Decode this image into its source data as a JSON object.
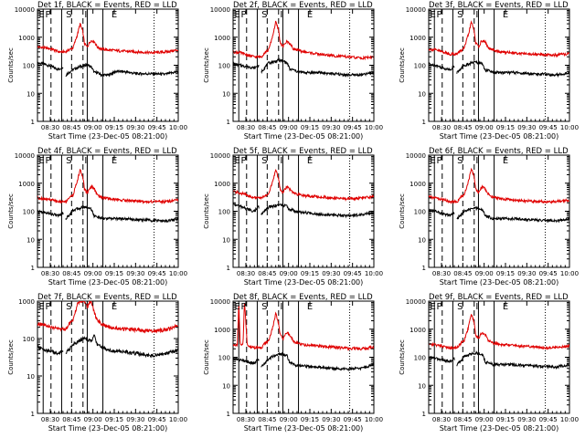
{
  "figure": {
    "x_title": "Start Time (23-Dec-05 08:21:00)",
    "y_title": "Counts/sec",
    "x_ticks": [
      "08:30",
      "08:45",
      "09:00",
      "09:15",
      "09:30",
      "09:45",
      "10:00"
    ],
    "y_ticks": [
      "1",
      "10",
      "100",
      "1000",
      "10000"
    ],
    "interval_labels": [
      "E",
      "P",
      "S",
      "I",
      "E"
    ],
    "colors": {
      "events": "#000000",
      "lld": "#e00000"
    }
  },
  "chart_data": [
    {
      "type": "line",
      "title": "Det 1f, BLACK = Events, RED = LLD",
      "xlabel": "Start Time (23-Dec-05 08:21:00)",
      "ylabel": "Counts/sec",
      "x_unit": "minutes after 08:21",
      "xlim": [
        0,
        99
      ],
      "ylim": [
        1,
        10000
      ],
      "y_scale": "log",
      "series": [
        {
          "name": "Events",
          "color": "black",
          "x": [
            0,
            5,
            10,
            15,
            18,
            19,
            20,
            22,
            25,
            30,
            32,
            35,
            38,
            40,
            42,
            45,
            50,
            55,
            60,
            70,
            80,
            90,
            99
          ],
          "y": [
            120,
            110,
            90,
            70,
            90,
            35,
            45,
            55,
            70,
            90,
            95,
            105,
            85,
            55,
            55,
            45,
            45,
            60,
            60,
            50,
            50,
            48,
            60
          ]
        },
        {
          "name": "LLD",
          "color": "red",
          "x": [
            0,
            5,
            10,
            15,
            20,
            22,
            25,
            28,
            30,
            32,
            33,
            35,
            37,
            38,
            40,
            42,
            45,
            50,
            60,
            70,
            80,
            90,
            99
          ],
          "y": [
            450,
            420,
            380,
            300,
            300,
            350,
            420,
            1200,
            3000,
            1500,
            600,
            450,
            700,
            750,
            700,
            450,
            380,
            350,
            320,
            300,
            280,
            300,
            350
          ]
        }
      ]
    },
    {
      "type": "line",
      "title": "Det 2f, BLACK = Events, RED = LLD",
      "xlabel": "Start Time (23-Dec-05 08:21:00)",
      "ylabel": "Counts/sec",
      "x_unit": "minutes after 08:21",
      "xlim": [
        0,
        99
      ],
      "ylim": [
        1,
        10000
      ],
      "y_scale": "log",
      "series": [
        {
          "name": "Events",
          "color": "black",
          "x": [
            0,
            5,
            10,
            15,
            18,
            19,
            20,
            22,
            25,
            30,
            32,
            35,
            38,
            40,
            42,
            45,
            50,
            55,
            60,
            70,
            80,
            90,
            99
          ],
          "y": [
            110,
            100,
            90,
            80,
            100,
            60,
            60,
            80,
            120,
            140,
            150,
            145,
            120,
            70,
            70,
            60,
            55,
            55,
            55,
            50,
            45,
            45,
            55
          ]
        },
        {
          "name": "LLD",
          "color": "red",
          "x": [
            0,
            5,
            10,
            15,
            20,
            22,
            25,
            28,
            30,
            32,
            33,
            35,
            37,
            38,
            40,
            42,
            45,
            50,
            60,
            70,
            80,
            90,
            99
          ],
          "y": [
            300,
            280,
            230,
            200,
            200,
            280,
            350,
            1200,
            3500,
            1800,
            700,
            450,
            650,
            700,
            600,
            400,
            350,
            300,
            250,
            220,
            200,
            180,
            200
          ]
        }
      ]
    },
    {
      "type": "line",
      "title": "Det 3f, BLACK = Events, RED = LLD",
      "xlabel": "Start Time (23-Dec-05 08:21:00)",
      "ylabel": "Counts/sec",
      "x_unit": "minutes after 08:21",
      "xlim": [
        0,
        99
      ],
      "ylim": [
        1,
        10000
      ],
      "y_scale": "log",
      "series": [
        {
          "name": "Events",
          "color": "black",
          "x": [
            0,
            5,
            10,
            15,
            18,
            19,
            20,
            22,
            25,
            30,
            32,
            35,
            38,
            40,
            42,
            45,
            50,
            55,
            60,
            70,
            80,
            90,
            99
          ],
          "y": [
            110,
            100,
            80,
            70,
            90,
            50,
            55,
            70,
            100,
            120,
            130,
            125,
            110,
            65,
            65,
            55,
            55,
            55,
            55,
            50,
            48,
            45,
            55
          ]
        },
        {
          "name": "LLD",
          "color": "red",
          "x": [
            0,
            5,
            10,
            15,
            20,
            22,
            25,
            28,
            30,
            32,
            33,
            35,
            37,
            38,
            40,
            42,
            45,
            50,
            60,
            70,
            80,
            90,
            99
          ],
          "y": [
            380,
            350,
            300,
            250,
            250,
            320,
            400,
            1300,
            3500,
            1700,
            650,
            450,
            700,
            750,
            650,
            400,
            350,
            300,
            280,
            250,
            240,
            230,
            260
          ]
        }
      ]
    },
    {
      "type": "line",
      "title": "Det 4f, BLACK = Events, RED = LLD",
      "xlabel": "Start Time (23-Dec-05 08:21:00)",
      "ylabel": "Counts/sec",
      "x_unit": "minutes after 08:21",
      "xlim": [
        0,
        99
      ],
      "ylim": [
        1,
        10000
      ],
      "y_scale": "log",
      "series": [
        {
          "name": "Events",
          "color": "black",
          "x": [
            0,
            5,
            10,
            15,
            18,
            19,
            20,
            22,
            25,
            30,
            32,
            35,
            38,
            40,
            42,
            45,
            50,
            55,
            60,
            70,
            80,
            90,
            99
          ],
          "y": [
            100,
            90,
            80,
            70,
            90,
            50,
            55,
            70,
            110,
            130,
            140,
            140,
            120,
            65,
            65,
            55,
            55,
            55,
            55,
            50,
            48,
            45,
            55
          ]
        },
        {
          "name": "LLD",
          "color": "red",
          "x": [
            0,
            5,
            10,
            15,
            20,
            22,
            25,
            28,
            30,
            32,
            33,
            35,
            37,
            38,
            40,
            42,
            45,
            50,
            60,
            70,
            80,
            90,
            99
          ],
          "y": [
            300,
            280,
            250,
            220,
            220,
            300,
            380,
            1200,
            3000,
            1600,
            650,
            450,
            700,
            750,
            600,
            400,
            320,
            280,
            250,
            230,
            220,
            220,
            250
          ]
        }
      ]
    },
    {
      "type": "line",
      "title": "Det 5f, BLACK = Events, RED = LLD",
      "xlabel": "Start Time (23-Dec-05 08:21:00)",
      "ylabel": "Counts/sec",
      "x_unit": "minutes after 08:21",
      "xlim": [
        0,
        99
      ],
      "ylim": [
        1,
        10000
      ],
      "y_scale": "log",
      "series": [
        {
          "name": "Events",
          "color": "black",
          "x": [
            0,
            5,
            10,
            15,
            18,
            19,
            20,
            22,
            25,
            30,
            32,
            35,
            38,
            40,
            42,
            45,
            50,
            55,
            60,
            70,
            80,
            90,
            99
          ],
          "y": [
            180,
            150,
            120,
            100,
            150,
            75,
            80,
            100,
            140,
            160,
            170,
            165,
            150,
            110,
            110,
            95,
            90,
            85,
            80,
            75,
            70,
            75,
            90
          ]
        },
        {
          "name": "LLD",
          "color": "red",
          "x": [
            0,
            5,
            10,
            15,
            20,
            22,
            25,
            28,
            30,
            32,
            33,
            35,
            37,
            38,
            40,
            42,
            45,
            50,
            60,
            70,
            80,
            90,
            99
          ],
          "y": [
            500,
            450,
            380,
            300,
            300,
            350,
            420,
            1200,
            3000,
            1500,
            650,
            450,
            700,
            750,
            600,
            450,
            400,
            360,
            330,
            300,
            280,
            300,
            330
          ]
        }
      ]
    },
    {
      "type": "line",
      "title": "Det 6f, BLACK = Events, RED = LLD",
      "xlabel": "Start Time (23-Dec-05 08:21:00)",
      "ylabel": "Counts/sec",
      "x_unit": "minutes after 08:21",
      "xlim": [
        0,
        99
      ],
      "ylim": [
        1,
        10000
      ],
      "y_scale": "log",
      "series": [
        {
          "name": "Events",
          "color": "black",
          "x": [
            0,
            5,
            10,
            15,
            18,
            19,
            20,
            22,
            25,
            30,
            32,
            35,
            38,
            40,
            42,
            45,
            50,
            55,
            60,
            70,
            80,
            90,
            99
          ],
          "y": [
            110,
            100,
            80,
            70,
            90,
            50,
            55,
            70,
            100,
            120,
            130,
            125,
            110,
            65,
            65,
            55,
            55,
            55,
            55,
            50,
            48,
            45,
            55
          ]
        },
        {
          "name": "LLD",
          "color": "red",
          "x": [
            0,
            5,
            10,
            15,
            20,
            22,
            25,
            28,
            30,
            32,
            33,
            35,
            37,
            38,
            40,
            42,
            45,
            50,
            60,
            70,
            80,
            90,
            99
          ],
          "y": [
            320,
            300,
            260,
            220,
            220,
            300,
            380,
            1200,
            3200,
            1600,
            650,
            450,
            700,
            750,
            600,
            400,
            320,
            280,
            250,
            230,
            220,
            220,
            250
          ]
        }
      ]
    },
    {
      "type": "line",
      "title": "Det 7f, BLACK = Events, RED = LLD",
      "xlabel": "Start Time (23-Dec-05 08:21:00)",
      "ylabel": "Counts/sec",
      "x_unit": "minutes after 08:21",
      "xlim": [
        0,
        99
      ],
      "ylim": [
        1,
        1000
      ],
      "y_scale": "log",
      "series": [
        {
          "name": "Events",
          "color": "black",
          "x": [
            0,
            5,
            10,
            15,
            18,
            19,
            20,
            22,
            25,
            30,
            32,
            35,
            38,
            40,
            42,
            45,
            50,
            55,
            60,
            70,
            80,
            90,
            99
          ],
          "y": [
            60,
            50,
            45,
            40,
            50,
            35,
            40,
            50,
            70,
            90,
            100,
            95,
            85,
            120,
            70,
            60,
            50,
            45,
            45,
            40,
            35,
            40,
            50
          ]
        },
        {
          "name": "LLD",
          "color": "red",
          "x": [
            0,
            5,
            10,
            15,
            20,
            22,
            25,
            28,
            30,
            32,
            33,
            35,
            37,
            38,
            40,
            42,
            45,
            50,
            60,
            70,
            80,
            90,
            99
          ],
          "y": [
            250,
            220,
            200,
            180,
            180,
            250,
            300,
            800,
            1000,
            1000,
            1000,
            700,
            1000,
            900,
            500,
            300,
            250,
            200,
            180,
            170,
            160,
            170,
            220
          ]
        }
      ]
    },
    {
      "type": "line",
      "title": "Det 8f, BLACK = Events, RED = LLD",
      "xlabel": "Start Time (23-Dec-05 08:21:00)",
      "ylabel": "Counts/sec",
      "x_unit": "minutes after 08:21",
      "xlim": [
        0,
        99
      ],
      "ylim": [
        1,
        10000
      ],
      "y_scale": "log",
      "series": [
        {
          "name": "Events",
          "color": "black",
          "x": [
            0,
            5,
            10,
            15,
            18,
            19,
            20,
            22,
            25,
            30,
            32,
            35,
            38,
            40,
            42,
            45,
            50,
            55,
            60,
            70,
            80,
            90,
            99
          ],
          "y": [
            90,
            80,
            70,
            60,
            90,
            45,
            50,
            60,
            90,
            120,
            130,
            125,
            110,
            60,
            60,
            50,
            50,
            45,
            45,
            40,
            38,
            40,
            55
          ]
        },
        {
          "name": "LLD",
          "color": "red",
          "x": [
            0,
            3,
            4,
            5,
            7,
            8,
            10,
            15,
            20,
            22,
            25,
            28,
            30,
            32,
            33,
            35,
            37,
            38,
            40,
            42,
            45,
            50,
            60,
            70,
            80,
            90,
            99
          ],
          "y": [
            280,
            260,
            10000,
            300,
            300,
            10000,
            260,
            220,
            220,
            300,
            380,
            1200,
            3500,
            1700,
            650,
            450,
            700,
            750,
            600,
            400,
            320,
            280,
            250,
            230,
            210,
            200,
            230
          ]
        }
      ]
    },
    {
      "type": "line",
      "title": "Det 9f, BLACK = Events, RED = LLD",
      "xlabel": "Start Time (23-Dec-05 08:21:00)",
      "ylabel": "Counts/sec",
      "x_unit": "minutes after 08:21",
      "xlim": [
        0,
        99
      ],
      "ylim": [
        1,
        10000
      ],
      "y_scale": "log",
      "series": [
        {
          "name": "Events",
          "color": "black",
          "x": [
            0,
            5,
            10,
            15,
            18,
            19,
            20,
            22,
            25,
            30,
            32,
            35,
            38,
            40,
            42,
            45,
            50,
            55,
            60,
            70,
            80,
            90,
            99
          ],
          "y": [
            100,
            90,
            80,
            70,
            90,
            50,
            55,
            70,
            110,
            130,
            140,
            140,
            120,
            65,
            65,
            55,
            55,
            55,
            55,
            50,
            48,
            45,
            55
          ]
        },
        {
          "name": "LLD",
          "color": "red",
          "x": [
            0,
            5,
            10,
            15,
            20,
            22,
            25,
            28,
            30,
            32,
            33,
            35,
            37,
            38,
            40,
            42,
            45,
            50,
            60,
            70,
            80,
            90,
            99
          ],
          "y": [
            300,
            280,
            250,
            220,
            220,
            300,
            380,
            1200,
            3500,
            1700,
            650,
            450,
            700,
            750,
            600,
            400,
            330,
            290,
            260,
            240,
            220,
            220,
            260
          ]
        }
      ]
    }
  ]
}
